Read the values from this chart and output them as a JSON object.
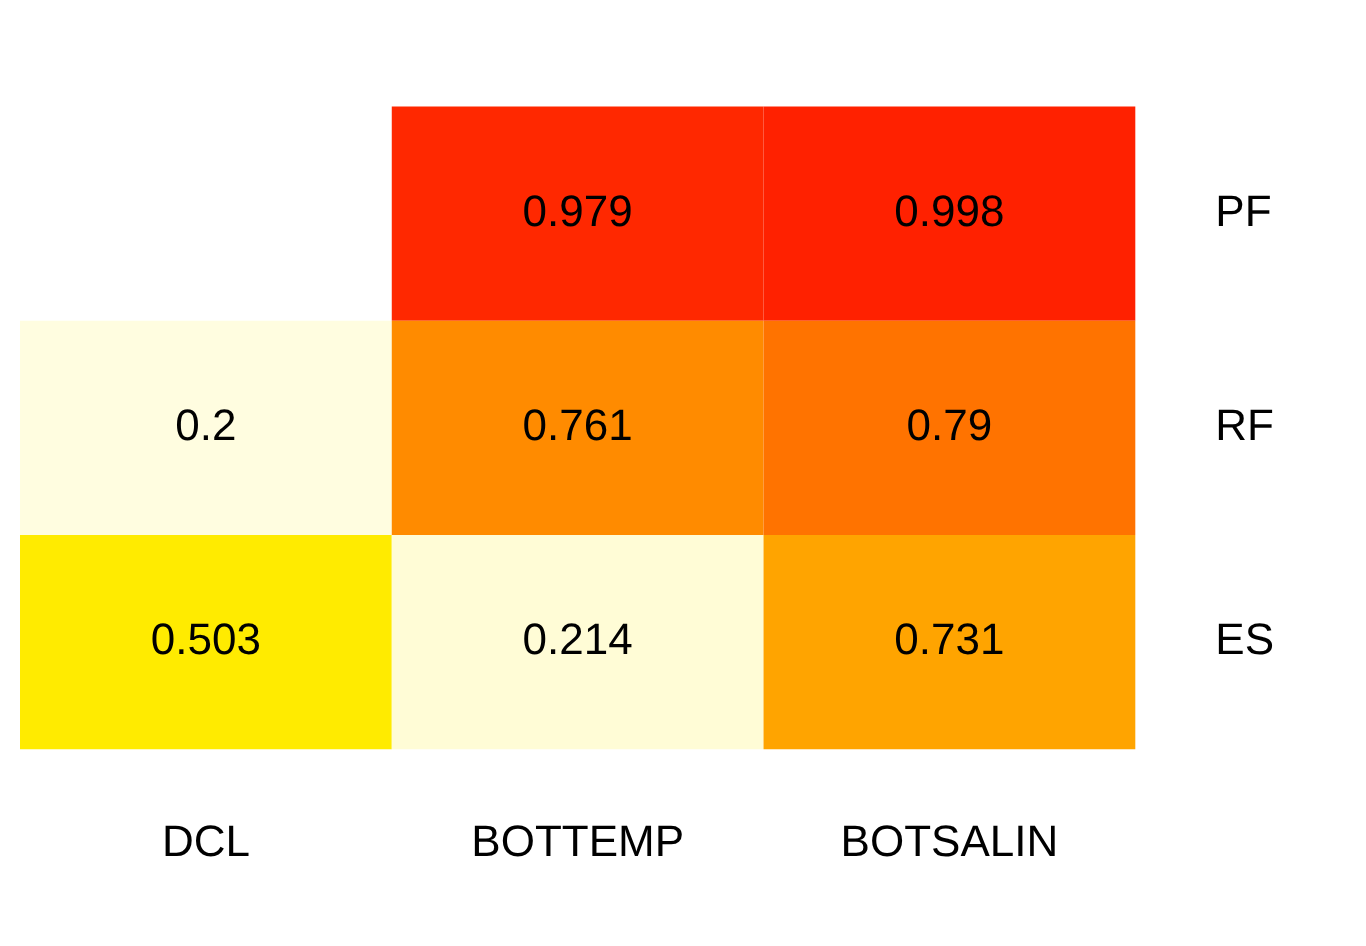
{
  "chart_data": {
    "type": "heatmap",
    "categories": [
      "DCL",
      "BOTTEMP",
      "BOTSALIN"
    ],
    "y_categories": [
      "PF",
      "RF",
      "ES"
    ],
    "cells": [
      [
        null,
        0.979,
        0.998
      ],
      [
        0.2,
        0.761,
        0.79
      ],
      [
        0.503,
        0.214,
        0.731
      ]
    ],
    "data_labels": true
  }
}
